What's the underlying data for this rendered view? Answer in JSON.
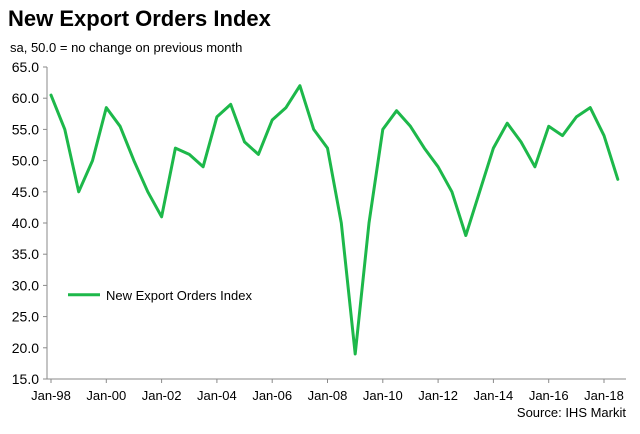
{
  "title": "New Export Orders Index",
  "subtitle": "sa, 50.0 = no change on previous month",
  "source": "Source: IHS Markit",
  "chart_data": {
    "type": "line",
    "title": "New Export Orders Index",
    "subtitle": "sa, 50.0 = no change on previous month",
    "xlabel": "",
    "ylabel": "",
    "ylim": [
      15,
      65
    ],
    "yticks": [
      "15.0",
      "20.0",
      "25.0",
      "30.0",
      "35.0",
      "40.0",
      "45.0",
      "50.0",
      "55.0",
      "60.0",
      "65.0"
    ],
    "xticks": [
      "Jan-98",
      "Jan-00",
      "Jan-02",
      "Jan-04",
      "Jan-06",
      "Jan-08",
      "Jan-10",
      "Jan-12",
      "Jan-14",
      "Jan-16",
      "Jan-18"
    ],
    "grid": false,
    "legend": {
      "position": "left-inside",
      "entries": [
        "New Export Orders Index"
      ]
    },
    "color": "#1db84a",
    "series": [
      {
        "name": "New Export Orders Index",
        "x": [
          "Jan-98",
          "Jul-98",
          "Jan-99",
          "Jul-99",
          "Jan-00",
          "Jul-00",
          "Jan-01",
          "Jul-01",
          "Jan-02",
          "Jul-02",
          "Jan-03",
          "Jul-03",
          "Jan-04",
          "Jul-04",
          "Jan-05",
          "Jul-05",
          "Jan-06",
          "Jul-06",
          "Jan-07",
          "Jul-07",
          "Jan-08",
          "Jul-08",
          "Jan-09",
          "Jul-09",
          "Jan-10",
          "Jul-10",
          "Jan-11",
          "Jul-11",
          "Jan-12",
          "Jul-12",
          "Jan-13",
          "Jul-13",
          "Jan-14",
          "Jul-14",
          "Jan-15",
          "Jul-15",
          "Jan-16",
          "Jul-16",
          "Jan-17",
          "Jul-17",
          "Jan-18",
          "Jul-18"
        ],
        "values": [
          60.5,
          55.0,
          45.0,
          50.0,
          58.5,
          55.5,
          50.0,
          45.0,
          41.0,
          52.0,
          51.0,
          49.0,
          57.0,
          59.0,
          53.0,
          51.0,
          56.5,
          58.5,
          62.0,
          55.0,
          52.0,
          40.0,
          19.0,
          40.0,
          55.0,
          58.0,
          55.5,
          52.0,
          49.0,
          45.0,
          38.0,
          45.0,
          52.0,
          56.0,
          53.0,
          49.0,
          55.5,
          54.0,
          57.0,
          58.5,
          54.0,
          47.0
        ]
      }
    ]
  }
}
